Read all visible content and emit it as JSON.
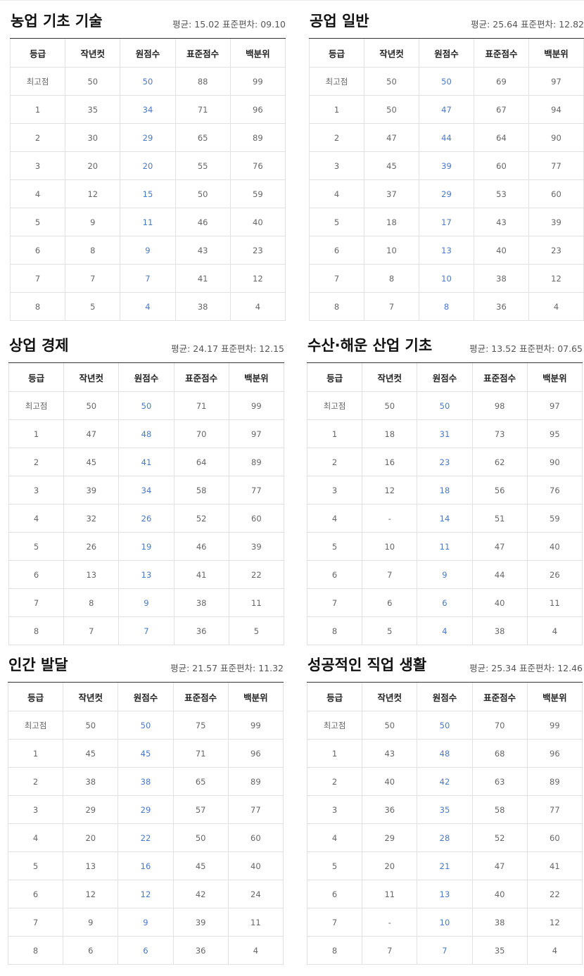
{
  "columns": [
    "등급",
    "작년컷",
    "원점수",
    "표준점수",
    "백분위"
  ],
  "colors": {
    "raw_score": "#4a78c9",
    "header_rule": "#333333",
    "grid": "#e1e1e1"
  },
  "subjects": [
    {
      "title": "농업 기초 기술",
      "stats": "평균: 15.02 표준편차: 09.10",
      "rows": [
        [
          "최고점",
          "50",
          "50",
          "88",
          "99"
        ],
        [
          "1",
          "35",
          "34",
          "71",
          "96"
        ],
        [
          "2",
          "30",
          "29",
          "65",
          "89"
        ],
        [
          "3",
          "20",
          "20",
          "55",
          "76"
        ],
        [
          "4",
          "12",
          "15",
          "50",
          "59"
        ],
        [
          "5",
          "9",
          "11",
          "46",
          "40"
        ],
        [
          "6",
          "8",
          "9",
          "43",
          "23"
        ],
        [
          "7",
          "7",
          "7",
          "41",
          "12"
        ],
        [
          "8",
          "5",
          "4",
          "38",
          "4"
        ]
      ]
    },
    {
      "title": "공업 일반",
      "stats": "평균: 25.64 표준편차: 12.82",
      "rows": [
        [
          "최고점",
          "50",
          "50",
          "69",
          "97"
        ],
        [
          "1",
          "50",
          "47",
          "67",
          "94"
        ],
        [
          "2",
          "47",
          "44",
          "64",
          "90"
        ],
        [
          "3",
          "45",
          "39",
          "60",
          "77"
        ],
        [
          "4",
          "37",
          "29",
          "53",
          "60"
        ],
        [
          "5",
          "18",
          "17",
          "43",
          "39"
        ],
        [
          "6",
          "10",
          "13",
          "40",
          "23"
        ],
        [
          "7",
          "8",
          "10",
          "38",
          "12"
        ],
        [
          "8",
          "7",
          "8",
          "36",
          "4"
        ]
      ]
    },
    {
      "title": "상업 경제",
      "stats": "평균: 24.17 표준편차: 12.15",
      "rows": [
        [
          "최고점",
          "50",
          "50",
          "71",
          "99"
        ],
        [
          "1",
          "47",
          "48",
          "70",
          "97"
        ],
        [
          "2",
          "45",
          "41",
          "64",
          "89"
        ],
        [
          "3",
          "39",
          "34",
          "58",
          "77"
        ],
        [
          "4",
          "32",
          "26",
          "52",
          "60"
        ],
        [
          "5",
          "26",
          "19",
          "46",
          "39"
        ],
        [
          "6",
          "13",
          "13",
          "41",
          "22"
        ],
        [
          "7",
          "8",
          "9",
          "38",
          "11"
        ],
        [
          "8",
          "7",
          "7",
          "36",
          "5"
        ]
      ]
    },
    {
      "title": "수산·해운 산업 기초",
      "stats": "평균: 13.52 표준편차: 07.65",
      "rows": [
        [
          "최고점",
          "50",
          "50",
          "98",
          "97"
        ],
        [
          "1",
          "18",
          "31",
          "73",
          "95"
        ],
        [
          "2",
          "16",
          "23",
          "62",
          "90"
        ],
        [
          "3",
          "12",
          "18",
          "56",
          "76"
        ],
        [
          "4",
          "-",
          "14",
          "51",
          "59"
        ],
        [
          "5",
          "10",
          "11",
          "47",
          "40"
        ],
        [
          "6",
          "7",
          "9",
          "44",
          "26"
        ],
        [
          "7",
          "6",
          "6",
          "40",
          "11"
        ],
        [
          "8",
          "5",
          "4",
          "38",
          "4"
        ]
      ]
    },
    {
      "title": "인간 발달",
      "stats": "평균: 21.57 표준편차: 11.32",
      "rows": [
        [
          "최고점",
          "50",
          "50",
          "75",
          "99"
        ],
        [
          "1",
          "45",
          "45",
          "71",
          "96"
        ],
        [
          "2",
          "38",
          "38",
          "65",
          "89"
        ],
        [
          "3",
          "29",
          "29",
          "57",
          "77"
        ],
        [
          "4",
          "20",
          "22",
          "50",
          "60"
        ],
        [
          "5",
          "13",
          "16",
          "45",
          "40"
        ],
        [
          "6",
          "12",
          "12",
          "42",
          "24"
        ],
        [
          "7",
          "9",
          "9",
          "39",
          "11"
        ],
        [
          "8",
          "6",
          "6",
          "36",
          "4"
        ]
      ]
    },
    {
      "title": "성공적인 직업 생활",
      "stats": "평균: 25.34 표준편차: 12.46",
      "rows": [
        [
          "최고점",
          "50",
          "50",
          "70",
          "99"
        ],
        [
          "1",
          "43",
          "48",
          "68",
          "96"
        ],
        [
          "2",
          "40",
          "42",
          "63",
          "89"
        ],
        [
          "3",
          "36",
          "35",
          "58",
          "77"
        ],
        [
          "4",
          "29",
          "28",
          "52",
          "60"
        ],
        [
          "5",
          "20",
          "21",
          "47",
          "41"
        ],
        [
          "6",
          "11",
          "13",
          "40",
          "22"
        ],
        [
          "7",
          "-",
          "10",
          "38",
          "12"
        ],
        [
          "8",
          "7",
          "7",
          "35",
          "4"
        ]
      ]
    }
  ]
}
